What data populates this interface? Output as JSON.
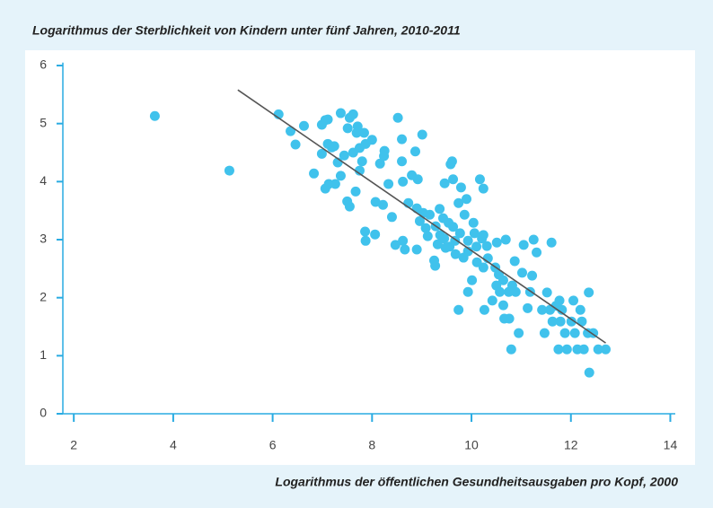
{
  "chart_data": {
    "type": "scatter",
    "title": "Logarithmus der Sterblichkeit von Kindern unter fünf Jahren, 2010-2011",
    "x_label": "Logarithmus der öffentlichen Gesundheitsausgaben pro Kopf, 2000",
    "color": "#40c2ec",
    "x": [
      3.63,
      5.13,
      6.12,
      6.36,
      6.46,
      6.63,
      6.83,
      6.99,
      7.06,
      7.11,
      6.99,
      7.06,
      7.11,
      7.19,
      7.24,
      7.31,
      7.26,
      7.13,
      7.37,
      7.44,
      7.37,
      7.51,
      7.55,
      7.62,
      7.5,
      7.55,
      7.62,
      7.67,
      7.69,
      7.71,
      7.75,
      7.75,
      7.8,
      7.84,
      7.87,
      7.86,
      7.87,
      8.0,
      8.06,
      8.07,
      8.16,
      8.22,
      8.25,
      8.24,
      8.33,
      8.4,
      8.47,
      8.52,
      8.6,
      8.6,
      8.62,
      8.62,
      8.66,
      8.73,
      8.8,
      8.87,
      8.9,
      8.92,
      8.9,
      8.96,
      9.01,
      9.03,
      9.08,
      9.12,
      9.16,
      9.25,
      9.27,
      9.28,
      9.32,
      9.36,
      9.37,
      9.43,
      9.45,
      9.46,
      9.48,
      9.54,
      9.56,
      9.58,
      9.61,
      9.63,
      9.63,
      9.67,
      9.68,
      9.74,
      9.74,
      9.77,
      9.79,
      9.84,
      9.86,
      9.9,
      9.93,
      9.93,
      9.93,
      10.01,
      10.04,
      10.06,
      10.1,
      10.11,
      10.17,
      10.21,
      10.24,
      10.24,
      10.24,
      10.26,
      10.31,
      10.33,
      10.42,
      10.48,
      10.5,
      10.51,
      10.55,
      10.57,
      10.64,
      10.64,
      10.66,
      10.69,
      10.75,
      10.76,
      10.8,
      10.82,
      10.87,
      10.89,
      10.95,
      11.02,
      11.05,
      11.13,
      11.18,
      11.22,
      11.25,
      11.31,
      11.42,
      11.47,
      11.52,
      11.58,
      11.61,
      11.63,
      11.7,
      11.75,
      11.77,
      11.79,
      11.82,
      11.88,
      11.92,
      12.01,
      12.05,
      12.08,
      12.13,
      12.19,
      12.22,
      12.26,
      12.34,
      12.36,
      12.37,
      12.45,
      12.55,
      12.7
    ],
    "values": [
      5.13,
      4.19,
      5.16,
      4.87,
      4.64,
      4.96,
      4.14,
      4.98,
      5.06,
      5.07,
      4.48,
      3.88,
      4.65,
      4.59,
      4.61,
      4.33,
      3.96,
      3.96,
      5.18,
      4.45,
      4.1,
      4.92,
      5.1,
      5.16,
      3.66,
      3.57,
      4.5,
      3.83,
      4.84,
      4.95,
      4.58,
      4.19,
      4.35,
      4.84,
      2.98,
      3.14,
      4.65,
      4.72,
      3.09,
      3.65,
      4.31,
      3.6,
      4.53,
      4.44,
      3.96,
      3.39,
      2.91,
      5.1,
      4.35,
      4.73,
      4.0,
      2.98,
      2.83,
      3.63,
      4.11,
      4.52,
      2.83,
      4.04,
      3.54,
      3.32,
      4.81,
      3.46,
      3.2,
      3.06,
      3.43,
      2.64,
      2.55,
      3.23,
      2.92,
      3.53,
      3.08,
      3.37,
      3.02,
      3.97,
      2.86,
      3.29,
      2.88,
      4.3,
      4.35,
      3.22,
      4.04,
      2.98,
      2.75,
      1.79,
      3.63,
      3.11,
      3.9,
      2.69,
      3.43,
      3.7,
      2.98,
      2.8,
      2.1,
      2.3,
      3.29,
      3.11,
      2.88,
      2.61,
      4.04,
      3.02,
      3.08,
      2.52,
      3.88,
      1.79,
      2.89,
      2.68,
      1.95,
      2.52,
      2.21,
      2.95,
      2.4,
      2.1,
      1.87,
      2.3,
      1.64,
      3.0,
      2.1,
      1.64,
      1.11,
      2.21,
      2.63,
      2.1,
      1.39,
      2.43,
      2.91,
      1.82,
      2.1,
      2.38,
      3.0,
      2.78,
      1.79,
      1.39,
      2.09,
      1.79,
      2.95,
      1.59,
      1.86,
      1.11,
      1.95,
      1.59,
      1.79,
      1.39,
      1.11,
      1.59,
      1.95,
      1.39,
      1.11,
      1.79,
      1.59,
      1.11,
      1.39,
      2.09,
      0.71,
      1.39,
      1.11,
      1.11
    ],
    "trendline": {
      "x": [
        5.3,
        12.7
      ],
      "values": [
        5.58,
        1.22
      ],
      "color": "#555555"
    },
    "xlim": [
      1.78,
      14.1
    ],
    "ylim": [
      0,
      6.05
    ],
    "xticks": [
      2,
      4,
      6,
      8,
      10,
      12,
      14
    ],
    "yticks": [
      0,
      1,
      2,
      3,
      4,
      5,
      6
    ]
  }
}
